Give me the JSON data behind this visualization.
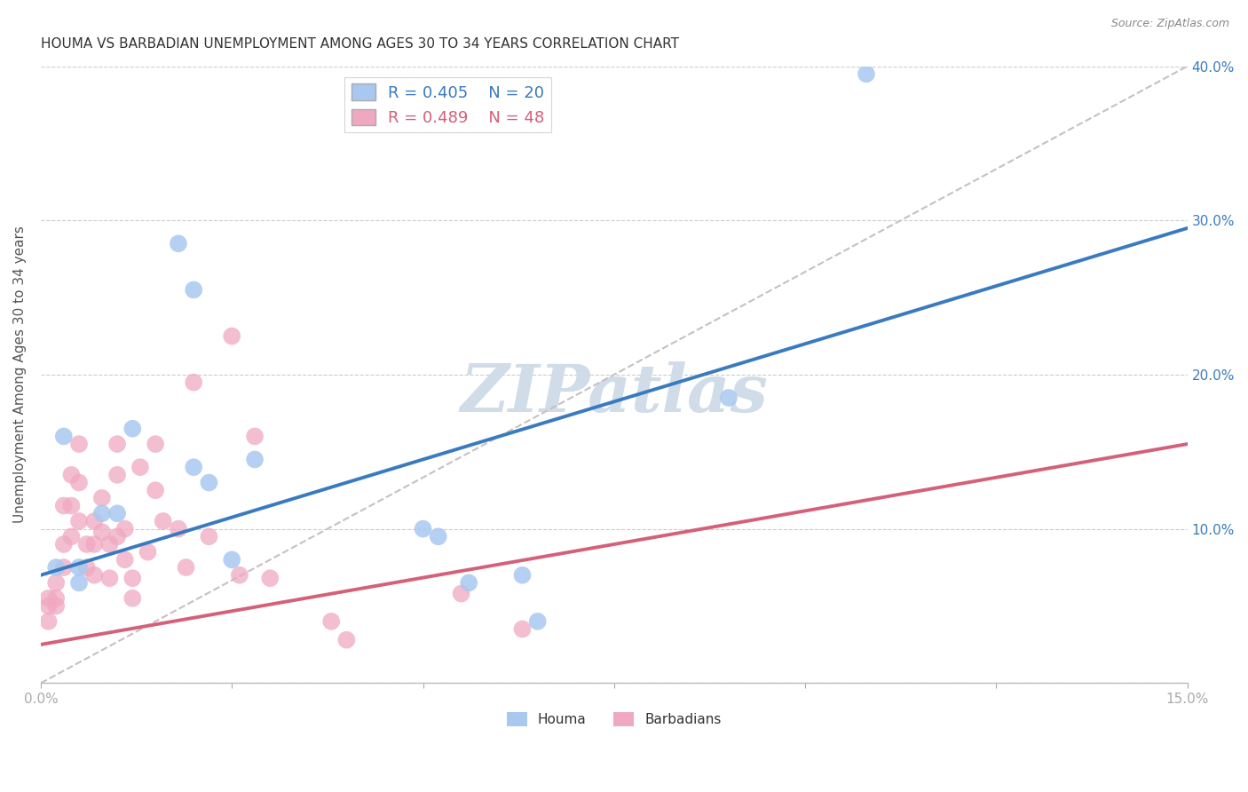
{
  "title": "HOUMA VS BARBADIAN UNEMPLOYMENT AMONG AGES 30 TO 34 YEARS CORRELATION CHART",
  "source": "Source: ZipAtlas.com",
  "ylabel": "Unemployment Among Ages 30 to 34 years",
  "xlim": [
    0.0,
    0.15
  ],
  "ylim": [
    0.0,
    0.4
  ],
  "xticks": [
    0.0,
    0.025,
    0.05,
    0.075,
    0.1,
    0.125,
    0.15
  ],
  "yticks_right": [
    0.0,
    0.1,
    0.2,
    0.3,
    0.4
  ],
  "ytick_labels_right": [
    "",
    "10.0%",
    "20.0%",
    "30.0%",
    "40.0%"
  ],
  "houma_R": 0.405,
  "houma_N": 20,
  "barbadian_R": 0.489,
  "barbadian_N": 48,
  "houma_color": "#a8c8f0",
  "barbadian_color": "#f0a8c0",
  "houma_line_color": "#3a7abf",
  "barbadian_line_color": "#d4607a",
  "ref_line_color": "#c8c0c0",
  "background_color": "#ffffff",
  "watermark_color": "#d0dce8",
  "title_fontsize": 11,
  "houma_line_x": [
    0.0,
    0.15
  ],
  "houma_line_y": [
    0.07,
    0.295
  ],
  "barbadian_line_x": [
    0.0,
    0.15
  ],
  "barbadian_line_y": [
    0.025,
    0.155
  ],
  "ref_line_x": [
    0.0,
    0.15
  ],
  "ref_line_y": [
    0.0,
    0.4
  ],
  "houma_x": [
    0.002,
    0.003,
    0.005,
    0.005,
    0.008,
    0.01,
    0.012,
    0.018,
    0.02,
    0.02,
    0.022,
    0.025,
    0.028,
    0.05,
    0.052,
    0.056,
    0.063,
    0.065,
    0.09,
    0.108
  ],
  "houma_y": [
    0.075,
    0.16,
    0.075,
    0.065,
    0.11,
    0.11,
    0.165,
    0.285,
    0.255,
    0.14,
    0.13,
    0.08,
    0.145,
    0.1,
    0.095,
    0.065,
    0.07,
    0.04,
    0.185,
    0.395
  ],
  "barbadian_x": [
    0.001,
    0.001,
    0.001,
    0.002,
    0.002,
    0.002,
    0.003,
    0.003,
    0.003,
    0.004,
    0.004,
    0.004,
    0.005,
    0.005,
    0.005,
    0.006,
    0.006,
    0.007,
    0.007,
    0.007,
    0.008,
    0.008,
    0.009,
    0.009,
    0.01,
    0.01,
    0.01,
    0.011,
    0.011,
    0.012,
    0.012,
    0.013,
    0.014,
    0.015,
    0.015,
    0.016,
    0.018,
    0.019,
    0.02,
    0.022,
    0.025,
    0.026,
    0.028,
    0.03,
    0.038,
    0.04,
    0.055,
    0.063
  ],
  "barbadian_y": [
    0.055,
    0.05,
    0.04,
    0.065,
    0.055,
    0.05,
    0.115,
    0.09,
    0.075,
    0.135,
    0.115,
    0.095,
    0.155,
    0.13,
    0.105,
    0.09,
    0.075,
    0.105,
    0.09,
    0.07,
    0.12,
    0.098,
    0.09,
    0.068,
    0.155,
    0.135,
    0.095,
    0.1,
    0.08,
    0.068,
    0.055,
    0.14,
    0.085,
    0.155,
    0.125,
    0.105,
    0.1,
    0.075,
    0.195,
    0.095,
    0.225,
    0.07,
    0.16,
    0.068,
    0.04,
    0.028,
    0.058,
    0.035
  ]
}
